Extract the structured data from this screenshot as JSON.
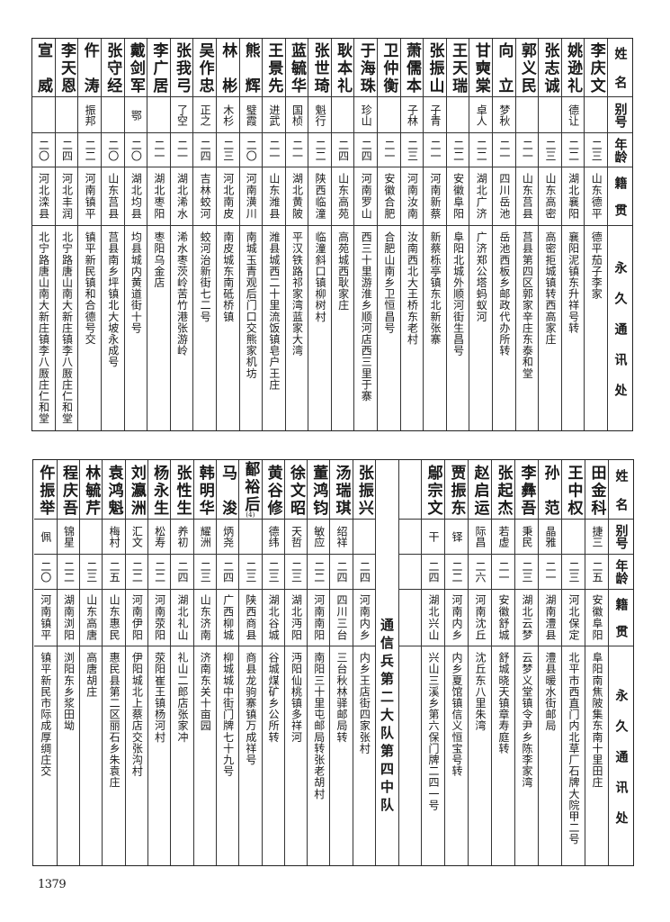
{
  "headers": {
    "name": "姓名",
    "alias": "别号",
    "age": "年龄",
    "native": "籍贯",
    "address": "永久通讯处"
  },
  "top": {
    "people": [
      {
        "name": "李庆文",
        "alias": "",
        "age": "二三",
        "native": "山东德平",
        "address": "德平茄子李家"
      },
      {
        "name": "姚逊礼",
        "alias": "德让",
        "age": "二二",
        "native": "湖北襄阳",
        "address": "襄阳泥镇东升祥号转"
      },
      {
        "name": "张志诚",
        "alias": "",
        "age": "二三",
        "native": "山东高密",
        "address": "高密拒城镇转西高家庄"
      },
      {
        "name": "郭义民",
        "alias": "",
        "age": "二一",
        "native": "山东莒县",
        "address": "莒县第四区郭家辛庄东泰和堂"
      },
      {
        "name": "向立",
        "alias": "梦秋",
        "age": "二一",
        "native": "四川岳池",
        "address": "岳池西板乡邮政代办所转"
      },
      {
        "name": "甘奭棠",
        "alias": "卓人",
        "age": "二二",
        "native": "湖北广济",
        "address": "广济郑公塔蚂蚁河"
      },
      {
        "name": "王天瑞",
        "alias": "",
        "age": "二二",
        "native": "安徽阜阳",
        "address": "阜阳北城外顺河街生昌号"
      },
      {
        "name": "张振山",
        "alias": "子青",
        "age": "二一",
        "native": "河南新蔡",
        "address": "新蔡栎亭镇东北新张寨"
      },
      {
        "name": "萧儒本",
        "alias": "子林",
        "age": "二三",
        "native": "河南汝南",
        "address": "汝南西北大王桥东老村"
      },
      {
        "name": "卫仲衡",
        "alias": "",
        "age": "二一",
        "native": "安徽合肥",
        "address": "合肥山南乡卫恒昌号"
      },
      {
        "name": "于海珠",
        "alias": "珍山",
        "age": "二四",
        "native": "河南罗山",
        "address": "西三十里游淮乡顺河店西三里于寨"
      },
      {
        "name": "耿本礼",
        "alias": "",
        "age": "二四",
        "native": "山东高苑",
        "address": "高苑城西耿家庄"
      },
      {
        "name": "张世琦",
        "alias": "魁行",
        "age": "二二",
        "native": "陕西临潼",
        "address": "临潼斜口镇柳树村"
      },
      {
        "name": "蓝毓华",
        "alias": "国桢",
        "age": "二一",
        "native": "湖北黄陂",
        "address": "平汉铁路祁家湾蓝家大湾"
      },
      {
        "name": "王景先",
        "alias": "进武",
        "age": "二一",
        "native": "山东潍县",
        "address": "潍县城西二十里流饭镇皂户王庄"
      },
      {
        "name": "熊辉",
        "alias": "璧霞",
        "age": "二〇",
        "native": "河南潢川",
        "address": "南城玉青观后门口交熊家机坊"
      },
      {
        "name": "林彬",
        "alias": "木杉",
        "age": "二三",
        "native": "河北南皮",
        "address": "南皮城东南砥桥镇"
      },
      {
        "name": "吴作忠",
        "alias": "正之",
        "age": "二四",
        "native": "吉林蛟河",
        "address": "蛟河治新街七二号"
      },
      {
        "name": "张我弓",
        "alias": "了空",
        "age": "二一",
        "native": "湖北浠水",
        "address": "浠水枣茨岭苦竹港张游岭"
      },
      {
        "name": "李广居",
        "alias": "",
        "age": "二一",
        "native": "湖北枣阳",
        "address": "枣阳乌金店"
      },
      {
        "name": "戴剑军",
        "alias": "鄂",
        "age": "二〇",
        "native": "湖北均县",
        "address": "均县城内黄道街十号"
      },
      {
        "name": "张守经",
        "alias": "",
        "age": "二〇",
        "native": "山东莒县",
        "address": "莒县南乡坪镇北大坡永成号"
      },
      {
        "name": "仵涛",
        "alias": "振邦",
        "age": "二二",
        "native": "河南镇平",
        "address": "镇平新民镇和合德号交"
      },
      {
        "name": "李天恩",
        "alias": "",
        "age": "二四",
        "native": "河北丰润",
        "address": "北宁路唐山南大新庄镇李八厫庄仁和堂"
      },
      {
        "name": "宣威",
        "alias": "",
        "age": "二〇",
        "native": "河北滦县",
        "address": "北宁路唐山南大新庄镇李八厫庄仁和堂"
      }
    ]
  },
  "bottom": {
    "people_right": [
      {
        "name": "田金科",
        "alias": "捷三",
        "age": "二五",
        "native": "安徽阜阳",
        "address": "阜阳南焦陂集东南十里田庄"
      },
      {
        "name": "王中权",
        "alias": "",
        "age": "二三",
        "native": "河北保定",
        "address": "北平市西直门内北草厂石牌大院甲二号"
      },
      {
        "name": "孙范",
        "alias": "晶雅",
        "age": "二一",
        "native": "湖南澧县",
        "address": "澧县暖水街邮局"
      },
      {
        "name": "李彝吾",
        "alias": "秉民",
        "age": "二三",
        "native": "湖北云梦",
        "address": "云梦义堂镇令尹乡陈李家湾"
      },
      {
        "name": "张起杰",
        "alias": "若虚",
        "age": "二一",
        "native": "安徽舒城",
        "address": "舒城晓天镇章寿庭转"
      },
      {
        "name": "赵启运",
        "alias": "际昌",
        "age": "二六",
        "native": "河南沈丘",
        "address": "沈丘东八里朱湾"
      },
      {
        "name": "贾振东",
        "alias": "铎",
        "age": "二二",
        "native": "河南内乡",
        "address": "内乡夏馆镇信义恒宝号转"
      },
      {
        "name": "鄔宗文",
        "alias": "干",
        "age": "二四",
        "native": "湖北兴山",
        "address": "兴山三溪乡第六保门牌二四一号"
      }
    ],
    "section_label": "通信兵第二大队第四中队",
    "people_left": [
      {
        "name": "张振兴",
        "alias": "",
        "age": "二四",
        "native": "河南内乡",
        "address": "内乡王店街四家张村"
      },
      {
        "name": "汤瑞琪",
        "alias": "绍祥",
        "age": "二四",
        "native": "四川三台",
        "address": "三台秋林驿邮局转"
      },
      {
        "name": "董鸿钧",
        "alias": "敏应",
        "age": "二二",
        "native": "河南南阳",
        "address": "南阳三十里屯邮局转张老胡村"
      },
      {
        "name": "徐文昭",
        "alias": "天哲",
        "age": "二三",
        "native": "湖北沔阳",
        "address": "沔阳仙桃镇多祥河"
      },
      {
        "name": "黄谷修",
        "alias": "德纬",
        "age": "二三",
        "native": "湖北谷城",
        "address": "谷城煤矿乡公所转"
      },
      {
        "name": "鄐裕后",
        "note": "(4)",
        "alias": "",
        "age": "二三",
        "native": "陕西商县",
        "address": "商县龙驹寨镇万成祥号"
      },
      {
        "name": "马浚",
        "alias": "炳尧",
        "age": "二四",
        "native": "广西柳城",
        "address": "柳城城中街门牌七十九号"
      },
      {
        "name": "韩明华",
        "alias": "耀洲",
        "age": "二三",
        "native": "山东济南",
        "address": "济南东关十亩园"
      },
      {
        "name": "张性生",
        "alias": "养初",
        "age": "二四",
        "native": "湖北礼山",
        "address": "礼山二郎店张家冲"
      },
      {
        "name": "杨永生",
        "alias": "松寿",
        "age": "二二",
        "native": "河南荥阳",
        "address": "荥阳崔王镇杨河村"
      },
      {
        "name": "刘瀛洲",
        "alias": "汇文",
        "age": "二二",
        "native": "河南伊阳",
        "address": "伊阳城北上蔡店交张沟村"
      },
      {
        "name": "袁鸿魁",
        "alias": "梅村",
        "age": "二五",
        "native": "山东惠民",
        "address": "惠民县第二区丽石乡朱袁庄"
      },
      {
        "name": "林毓芹",
        "alias": "",
        "age": "二三",
        "native": "山东高唐",
        "address": "高唐胡庄"
      },
      {
        "name": "程庆吾",
        "alias": "锦星",
        "age": "二二",
        "native": "湖南浏阳",
        "address": "浏阳东乡浆田坳"
      },
      {
        "name": "仵振举",
        "alias": "佩",
        "age": "二〇",
        "native": "河南镇平",
        "address": "镇平新民市际成厚绸庄交"
      }
    ]
  },
  "page_number": "1379"
}
